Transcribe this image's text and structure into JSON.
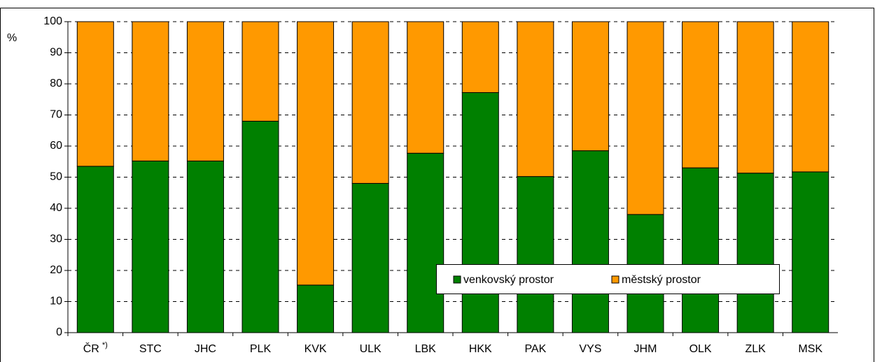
{
  "chart_data": {
    "type": "stacked_bar",
    "y_label": "%",
    "categories": [
      "ČR",
      "STC",
      "JHC",
      "PLK",
      "KVK",
      "ULK",
      "LBK",
      "HKK",
      "PAK",
      "VYS",
      "JHM",
      "OLK",
      "ZLK",
      "MSK"
    ],
    "footnote_mark": "*)",
    "series": [
      {
        "name": "venkovský prostor",
        "color": "#008000",
        "values": [
          53.5,
          55.2,
          55.2,
          68,
          15.3,
          48,
          57.7,
          77.2,
          50.2,
          58.5,
          38,
          53,
          51.3,
          51.7
        ]
      },
      {
        "name": "městský prostor",
        "color": "#ff9900",
        "values": [
          46.5,
          44.8,
          44.8,
          32,
          84.7,
          52,
          42.3,
          22.8,
          49.8,
          41.5,
          62,
          47,
          48.7,
          48.3
        ]
      }
    ],
    "ylim": [
      0,
      100
    ],
    "yticks": [
      0,
      10,
      20,
      30,
      40,
      50,
      60,
      70,
      80,
      90,
      100
    ],
    "grid": true
  }
}
